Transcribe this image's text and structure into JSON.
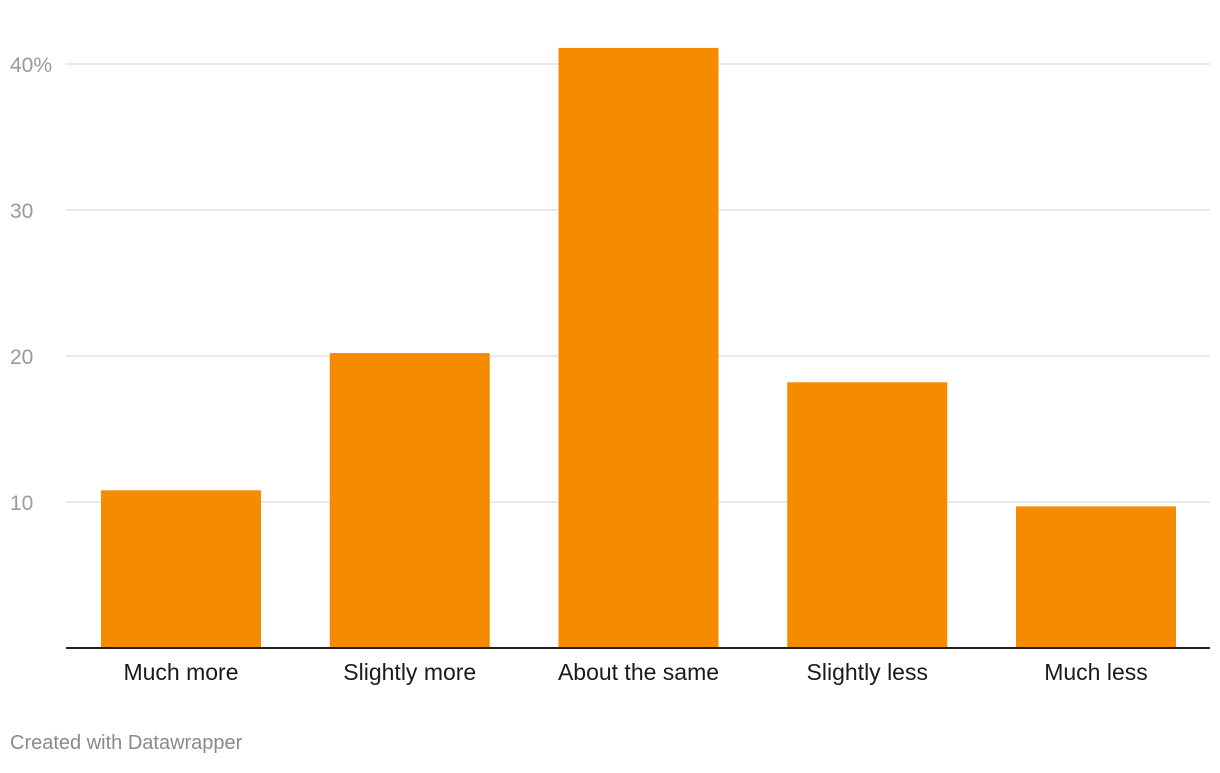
{
  "chart_data": {
    "type": "bar",
    "categories": [
      "Much more",
      "Slightly more",
      "About the same",
      "Slightly less",
      "Much less"
    ],
    "values": [
      10.8,
      20.2,
      41.1,
      18.2,
      9.7
    ],
    "title": "",
    "xlabel": "",
    "ylabel": "",
    "ylim": [
      0,
      44
    ],
    "yticks": [
      10,
      20,
      30,
      40
    ],
    "ytick_labels": [
      "10",
      "20",
      "30",
      "40%"
    ],
    "grid": true,
    "legend": "none",
    "bar_color": "#f78b00"
  },
  "footer": {
    "credit": "Created with Datawrapper"
  }
}
